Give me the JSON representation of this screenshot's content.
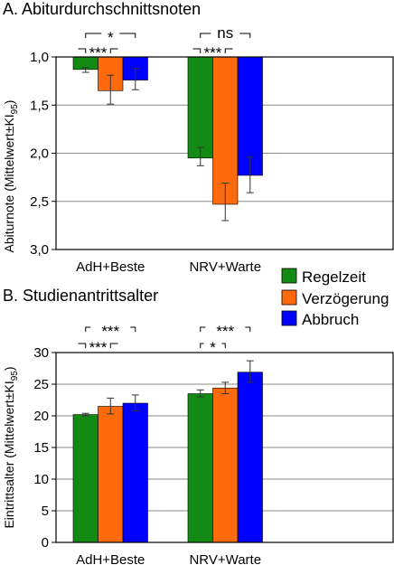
{
  "chart_data": [
    {
      "type": "bar",
      "title": "A. Abiturdurchschnittsnoten",
      "ylabel": "Abiturnote (Mittelwert±KI",
      "ylabel_sub": "95",
      "ylabel_tail": ")",
      "ylim": [
        1.0,
        3.0
      ],
      "y_inverted": true,
      "yticks": [
        1.0,
        1.5,
        2.0,
        2.5,
        3.0
      ],
      "ytick_labels": [
        "1,0",
        "1,5",
        "2,0",
        "2,5",
        "3,0"
      ],
      "grid": true,
      "categories": [
        "AdH+Beste",
        "NRV+Warte"
      ],
      "series": [
        {
          "name": "Regelzeit",
          "color": "#138a13",
          "values": [
            1.13,
            2.05
          ],
          "ci_low": [
            1.11,
            1.94
          ],
          "ci_high": [
            1.16,
            2.13
          ]
        },
        {
          "name": "Verzögerung",
          "color": "#ff6a0d",
          "values": [
            1.35,
            2.53
          ],
          "ci_low": [
            1.19,
            2.31
          ],
          "ci_high": [
            1.49,
            2.7
          ]
        },
        {
          "name": "Abbruch",
          "color": "#0000ff",
          "values": [
            1.24,
            2.23
          ],
          "ci_low": [
            1.12,
            2.04
          ],
          "ci_high": [
            1.34,
            2.41
          ]
        }
      ],
      "significance": [
        {
          "category": 0,
          "from": 0,
          "to": 2,
          "label": "*",
          "level": "upper"
        },
        {
          "category": 0,
          "from": 0,
          "to": 1,
          "label": "***",
          "level": "lower"
        },
        {
          "category": 1,
          "from": 0,
          "to": 2,
          "label": "ns",
          "level": "upper"
        },
        {
          "category": 1,
          "from": 0,
          "to": 1,
          "label": "***",
          "level": "lower"
        }
      ]
    },
    {
      "type": "bar",
      "title": "B. Studienantrittsalter",
      "ylabel": "Eintrittsalter (Mittelwert±KI",
      "ylabel_sub": "95",
      "ylabel_tail": ")",
      "ylim": [
        0,
        30
      ],
      "y_inverted": false,
      "yticks": [
        0,
        5,
        10,
        15,
        20,
        25,
        30
      ],
      "ytick_labels": [
        "0",
        "5",
        "10",
        "15",
        "20",
        "25",
        "30"
      ],
      "grid": true,
      "categories": [
        "AdH+Beste",
        "NRV+Warte"
      ],
      "series": [
        {
          "name": "Regelzeit",
          "color": "#138a13",
          "values": [
            20.2,
            23.5
          ],
          "ci_low": [
            20.0,
            23.0
          ],
          "ci_high": [
            20.4,
            24.1
          ]
        },
        {
          "name": "Verzögerung",
          "color": "#ff6a0d",
          "values": [
            21.5,
            24.4
          ],
          "ci_low": [
            20.3,
            23.5
          ],
          "ci_high": [
            22.8,
            25.3
          ]
        },
        {
          "name": "Abbruch",
          "color": "#0000ff",
          "values": [
            22.0,
            26.9
          ],
          "ci_low": [
            20.8,
            25.3
          ],
          "ci_high": [
            23.3,
            28.7
          ]
        }
      ],
      "significance": [
        {
          "category": 0,
          "from": 0,
          "to": 2,
          "label": "***",
          "level": "upper"
        },
        {
          "category": 0,
          "from": 0,
          "to": 1,
          "label": "***",
          "level": "lower"
        },
        {
          "category": 1,
          "from": 0,
          "to": 2,
          "label": "***",
          "level": "upper"
        },
        {
          "category": 1,
          "from": 0,
          "to": 1,
          "label": "*",
          "level": "lower"
        }
      ]
    }
  ],
  "legend": {
    "placement": "right",
    "items": [
      {
        "label": "Regelzeit",
        "color": "#138a13"
      },
      {
        "label": "Verzögerung",
        "color": "#ff6a0d"
      },
      {
        "label": "Abbruch",
        "color": "#0000ff"
      }
    ]
  }
}
